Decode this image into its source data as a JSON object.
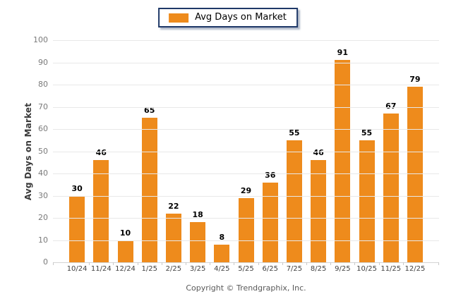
{
  "legend": {
    "label": "Avg Days on Market",
    "swatch_icon": "orange-square-swatch"
  },
  "y_axis": {
    "title": "Avg Days on Market",
    "ticks": [
      0,
      10,
      20,
      30,
      40,
      50,
      60,
      70,
      80,
      90,
      100
    ]
  },
  "footer": {
    "copyright": "Copyright © Trendgraphix, Inc."
  },
  "chart_data": {
    "type": "bar",
    "title": "",
    "categories": [
      "10/24",
      "11/24",
      "12/24",
      "1/25",
      "2/25",
      "3/25",
      "4/25",
      "5/25",
      "6/25",
      "7/25",
      "8/25",
      "9/25",
      "10/25",
      "11/25",
      "12/25"
    ],
    "series": [
      {
        "name": "Avg Days on Market",
        "values": [
          30,
          46,
          10,
          65,
          22,
          18,
          8,
          29,
          36,
          55,
          46,
          91,
          55,
          67,
          79
        ],
        "color": "#EE8B1C"
      }
    ],
    "xlabel": "",
    "ylabel": "Avg Days on Market",
    "ylim": [
      0,
      100
    ],
    "ytick_step": 10,
    "grid": true,
    "value_labels": true,
    "legend_position": "top-center"
  },
  "colors": {
    "bar": "#EE8B1C",
    "legend_border": "#1F3968",
    "gridline": "#E8E8E8",
    "axis_line": "#D4D4D4",
    "tick": "#C9C9C9",
    "value_label": "#000000",
    "y_axis_text": "#7A7A7A",
    "x_axis_text": "#3F3F3F",
    "y_title_text": "#3A3A3A",
    "copyright_text": "#595959",
    "background": "#FFFFFF"
  }
}
